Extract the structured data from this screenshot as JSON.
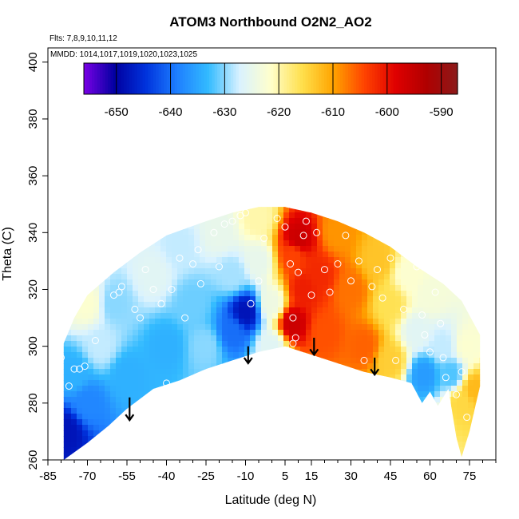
{
  "chart_data": {
    "type": "heatmap",
    "title": "ATOM3 Northbound O2N2_AO2",
    "flights_label": "Flts: 7,8,9,10,11,12",
    "dates_label": "MMDD: 1014,1017,1019,1020,1023,1025",
    "xlabel": "Latitude (deg N)",
    "ylabel": "Theta (C)",
    "xlim": [
      -85,
      85
    ],
    "ylim": [
      260,
      405
    ],
    "x_ticks": [
      "-85",
      "-70",
      "-55",
      "-40",
      "-25",
      "-10",
      "5",
      "15",
      "30",
      "45",
      "60",
      "75"
    ],
    "x_tick_values": [
      -85,
      -70,
      -55,
      -40,
      -25,
      -10,
      5,
      15,
      30,
      45,
      60,
      75
    ],
    "y_ticks": [
      "260",
      "280",
      "300",
      "320",
      "340",
      "360",
      "380",
      "400"
    ],
    "y_tick_values": [
      260,
      280,
      300,
      320,
      340,
      360,
      380,
      400
    ],
    "colorbar": {
      "range": [
        -656,
        -587
      ],
      "ticks": [
        "-650",
        "-640",
        "-630",
        "-620",
        "-610",
        "-600",
        "-590"
      ],
      "tick_values": [
        -650,
        -640,
        -630,
        -620,
        -610,
        -600,
        -590
      ],
      "colors": [
        "#7a00e6",
        "#0000a0",
        "#0033dd",
        "#1e7fff",
        "#33bbff",
        "#d9f2ff",
        "#ffffcc",
        "#ffe04d",
        "#ffa500",
        "#ff4400",
        "#e00000",
        "#b00000",
        "#8b1a1a"
      ]
    },
    "upper_boundary": [
      [
        -79,
        301
      ],
      [
        -75,
        310
      ],
      [
        -70,
        318
      ],
      [
        -60,
        326
      ],
      [
        -50,
        333
      ],
      [
        -40,
        339
      ],
      [
        -25,
        344
      ],
      [
        -15,
        347
      ],
      [
        -5,
        349
      ],
      [
        5,
        349
      ],
      [
        15,
        347
      ],
      [
        25,
        344
      ],
      [
        35,
        340
      ],
      [
        45,
        335
      ],
      [
        55,
        328
      ],
      [
        65,
        322
      ],
      [
        72,
        316
      ],
      [
        79,
        304
      ]
    ],
    "lower_boundary": [
      [
        -79,
        260
      ],
      [
        -70,
        266
      ],
      [
        -62,
        272
      ],
      [
        -55,
        278
      ],
      [
        -45,
        285
      ],
      [
        -35,
        288
      ],
      [
        -25,
        292
      ],
      [
        -15,
        295
      ],
      [
        -5,
        298
      ],
      [
        5,
        300
      ],
      [
        15,
        297
      ],
      [
        25,
        294
      ],
      [
        35,
        291
      ],
      [
        45,
        289
      ],
      [
        53,
        287
      ],
      [
        57,
        280
      ],
      [
        60,
        284
      ],
      [
        63,
        279
      ],
      [
        67,
        285
      ],
      [
        70,
        268
      ],
      [
        72,
        261
      ],
      [
        75,
        270
      ],
      [
        79,
        286
      ]
    ],
    "field_anchors": [
      {
        "lat": -78,
        "theta": 270,
        "value": -648
      },
      {
        "lat": -75,
        "theta": 290,
        "value": -634
      },
      {
        "lat": -70,
        "theta": 280,
        "value": -638
      },
      {
        "lat": -65,
        "theta": 300,
        "value": -628
      },
      {
        "lat": -70,
        "theta": 315,
        "value": -622
      },
      {
        "lat": -60,
        "theta": 315,
        "value": -630
      },
      {
        "lat": -55,
        "theta": 290,
        "value": -634
      },
      {
        "lat": -45,
        "theta": 325,
        "value": -626
      },
      {
        "lat": -40,
        "theta": 300,
        "value": -634
      },
      {
        "lat": -35,
        "theta": 335,
        "value": -628
      },
      {
        "lat": -30,
        "theta": 315,
        "value": -631
      },
      {
        "lat": -25,
        "theta": 300,
        "value": -630
      },
      {
        "lat": -20,
        "theta": 340,
        "value": -625
      },
      {
        "lat": -15,
        "theta": 325,
        "value": -629
      },
      {
        "lat": -10,
        "theta": 312,
        "value": -648
      },
      {
        "lat": -15,
        "theta": 305,
        "value": -640
      },
      {
        "lat": -5,
        "theta": 330,
        "value": -625
      },
      {
        "lat": -5,
        "theta": 345,
        "value": -620
      },
      {
        "lat": 0,
        "theta": 315,
        "value": -624
      },
      {
        "lat": 0,
        "theta": 300,
        "value": -626
      },
      {
        "lat": 8,
        "theta": 332,
        "value": -604
      },
      {
        "lat": 8,
        "theta": 308,
        "value": -596
      },
      {
        "lat": 10,
        "theta": 338,
        "value": -596
      },
      {
        "lat": 12,
        "theta": 320,
        "value": -601
      },
      {
        "lat": 18,
        "theta": 325,
        "value": -602
      },
      {
        "lat": 20,
        "theta": 305,
        "value": -605
      },
      {
        "lat": 25,
        "theta": 340,
        "value": -609
      },
      {
        "lat": 30,
        "theta": 320,
        "value": -607
      },
      {
        "lat": 35,
        "theta": 300,
        "value": -606
      },
      {
        "lat": 40,
        "theta": 330,
        "value": -613
      },
      {
        "lat": 45,
        "theta": 315,
        "value": -616
      },
      {
        "lat": 45,
        "theta": 295,
        "value": -614
      },
      {
        "lat": 52,
        "theta": 325,
        "value": -622
      },
      {
        "lat": 55,
        "theta": 305,
        "value": -626
      },
      {
        "lat": 58,
        "theta": 290,
        "value": -636
      },
      {
        "lat": 60,
        "theta": 318,
        "value": -623
      },
      {
        "lat": 65,
        "theta": 300,
        "value": -628
      },
      {
        "lat": 68,
        "theta": 290,
        "value": -632
      },
      {
        "lat": 72,
        "theta": 280,
        "value": -615
      },
      {
        "lat": 74,
        "theta": 300,
        "value": -622
      },
      {
        "lat": 77,
        "theta": 285,
        "value": -612
      }
    ],
    "observation_points": [
      [
        -80,
        296
      ],
      [
        -77,
        286
      ],
      [
        -75,
        292
      ],
      [
        -73,
        292
      ],
      [
        -71,
        293
      ],
      [
        -67,
        302
      ],
      [
        -60,
        318
      ],
      [
        -58,
        319
      ],
      [
        -57,
        321
      ],
      [
        -52,
        313
      ],
      [
        -50,
        310
      ],
      [
        -48,
        327
      ],
      [
        -45,
        320
      ],
      [
        -42,
        315
      ],
      [
        -40,
        287
      ],
      [
        -38,
        320
      ],
      [
        -35,
        331
      ],
      [
        -33,
        310
      ],
      [
        -30,
        329
      ],
      [
        -28,
        334
      ],
      [
        -27,
        322
      ],
      [
        -22,
        340
      ],
      [
        -20,
        328
      ],
      [
        -18,
        343
      ],
      [
        -15,
        344
      ],
      [
        -12,
        346
      ],
      [
        -10,
        347
      ],
      [
        -8,
        315
      ],
      [
        -5,
        323
      ],
      [
        -3,
        338
      ],
      [
        2,
        345
      ],
      [
        5,
        342
      ],
      [
        7,
        329
      ],
      [
        8,
        301
      ],
      [
        8,
        310
      ],
      [
        9,
        303
      ],
      [
        10,
        326
      ],
      [
        12,
        339
      ],
      [
        13,
        344
      ],
      [
        15,
        318
      ],
      [
        17,
        340
      ],
      [
        20,
        327
      ],
      [
        22,
        319
      ],
      [
        25,
        329
      ],
      [
        28,
        339
      ],
      [
        30,
        323
      ],
      [
        33,
        330
      ],
      [
        35,
        295
      ],
      [
        38,
        321
      ],
      [
        40,
        327
      ],
      [
        42,
        317
      ],
      [
        45,
        331
      ],
      [
        47,
        295
      ],
      [
        50,
        313
      ],
      [
        52,
        336
      ],
      [
        55,
        328
      ],
      [
        57,
        311
      ],
      [
        58,
        304
      ],
      [
        60,
        298
      ],
      [
        62,
        319
      ],
      [
        64,
        308
      ],
      [
        65,
        296
      ],
      [
        66,
        289
      ],
      [
        70,
        283
      ],
      [
        72,
        291
      ],
      [
        74,
        275
      ]
    ],
    "arrows": [
      {
        "lat": -54,
        "theta_top": 282,
        "theta_bottom": 274
      },
      {
        "lat": -9,
        "theta_top": 300,
        "theta_bottom": 294
      },
      {
        "lat": 16,
        "theta_top": 303,
        "theta_bottom": 297
      },
      {
        "lat": 39,
        "theta_top": 296,
        "theta_bottom": 290
      }
    ]
  }
}
